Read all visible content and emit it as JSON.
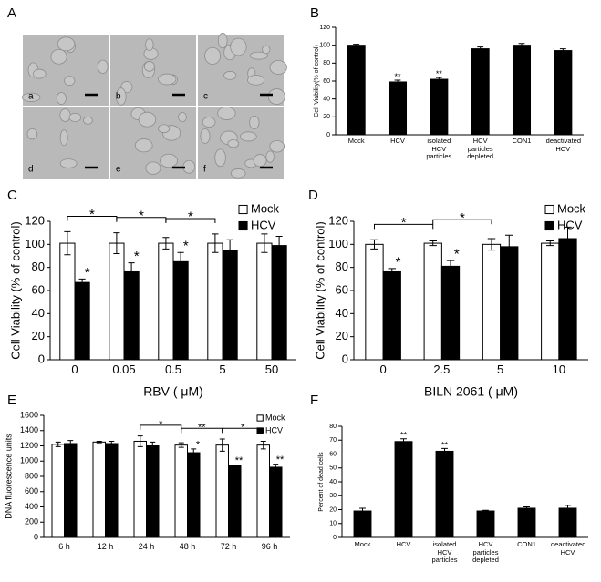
{
  "panel_a": {
    "panel": "A",
    "labels": [
      "a",
      "b",
      "c",
      "d",
      "e",
      "f"
    ]
  },
  "chart_data": [
    {
      "type": "bar",
      "panel": "B",
      "y_label": "Cell Viability(% of control)",
      "categories": [
        "Mock",
        "HCV",
        "isolated HCV particles",
        "HCV particles depleted",
        "CON1",
        "deactivated HCV"
      ],
      "values": [
        100,
        59,
        62,
        96,
        100,
        94
      ],
      "errors": [
        1,
        2,
        2,
        2,
        2,
        2
      ],
      "annotations": [
        null,
        "**",
        "**",
        null,
        null,
        null
      ],
      "color": "#000000",
      "ylim": [
        0,
        120
      ],
      "yticks": [
        0,
        20,
        40,
        60,
        80,
        100,
        120
      ]
    },
    {
      "type": "grouped_bar",
      "panel": "C",
      "y_label": "Cell Viability (% of control)",
      "x_label": "RBV ( μM)",
      "categories": [
        "0",
        "0.05",
        "0.5",
        "5",
        "50"
      ],
      "series": [
        {
          "name": "Mock",
          "color": "#ffffff",
          "values": [
            101,
            101,
            101,
            101,
            101
          ],
          "errors": [
            10,
            9,
            5,
            8,
            8
          ],
          "annotations": [
            null,
            null,
            null,
            null,
            null
          ]
        },
        {
          "name": "HCV",
          "color": "#000000",
          "values": [
            67,
            77,
            85,
            95,
            99
          ],
          "errors": [
            3,
            7,
            8,
            9,
            8
          ],
          "annotations": [
            "*",
            "*",
            "*",
            null,
            null
          ]
        }
      ],
      "brackets": [
        "*",
        "*",
        "*"
      ],
      "ylim": [
        0,
        120
      ],
      "yticks": [
        0,
        20,
        40,
        60,
        80,
        100,
        120
      ]
    },
    {
      "type": "grouped_bar",
      "panel": "D",
      "y_label": "Cell Viability (% of control)",
      "x_label": "BILN 2061 ( μM)",
      "categories": [
        "0",
        "2.5",
        "5",
        "10"
      ],
      "series": [
        {
          "name": "Mock",
          "color": "#ffffff",
          "values": [
            100,
            101,
            100,
            101
          ],
          "errors": [
            4,
            2,
            5,
            2
          ],
          "annotations": [
            null,
            null,
            null,
            null
          ]
        },
        {
          "name": "HCV",
          "color": "#000000",
          "values": [
            77,
            81,
            98,
            105
          ],
          "errors": [
            2,
            5,
            10,
            10
          ],
          "annotations": [
            "*",
            "*",
            null,
            null
          ]
        }
      ],
      "brackets": [
        "*",
        "*"
      ],
      "ylim": [
        0,
        120
      ],
      "yticks": [
        0,
        20,
        40,
        60,
        80,
        100,
        120
      ]
    },
    {
      "type": "grouped_bar",
      "panel": "E",
      "y_label": "DNA fluorescence units",
      "categories": [
        "6 h",
        "12 h",
        "24 h",
        "48 h",
        "72 h",
        "96 h"
      ],
      "series": [
        {
          "name": "Mock",
          "color": "#ffffff",
          "values": [
            1220,
            1250,
            1260,
            1210,
            1210,
            1210
          ],
          "errors": [
            30,
            10,
            70,
            30,
            80,
            50
          ],
          "annotations": [
            null,
            null,
            null,
            null,
            null,
            null
          ]
        },
        {
          "name": "HCV",
          "color": "#000000",
          "values": [
            1230,
            1230,
            1200,
            1110,
            940,
            920
          ],
          "errors": [
            40,
            30,
            50,
            50,
            10,
            40
          ],
          "annotations": [
            null,
            null,
            null,
            "*",
            "**",
            "**"
          ]
        }
      ],
      "brackets": [
        "*",
        "**",
        "*"
      ],
      "ylim": [
        0,
        1600
      ],
      "yticks": [
        0,
        200,
        400,
        600,
        800,
        1000,
        1200,
        1400,
        1600
      ]
    },
    {
      "type": "bar",
      "panel": "F",
      "y_label": "Percent of dead cells",
      "categories": [
        "Mock",
        "HCV",
        "isolated HCV particles",
        "HCV particles depleted",
        "CON1",
        "deactivated HCV"
      ],
      "values": [
        19,
        69,
        62,
        19,
        21,
        21
      ],
      "errors": [
        2,
        2,
        2,
        0.5,
        1,
        2
      ],
      "annotations": [
        null,
        "**",
        "**",
        null,
        null,
        null
      ],
      "color": "#000000",
      "ylim": [
        0,
        80
      ],
      "yticks": [
        0,
        10,
        20,
        30,
        40,
        50,
        60,
        70,
        80
      ]
    }
  ]
}
